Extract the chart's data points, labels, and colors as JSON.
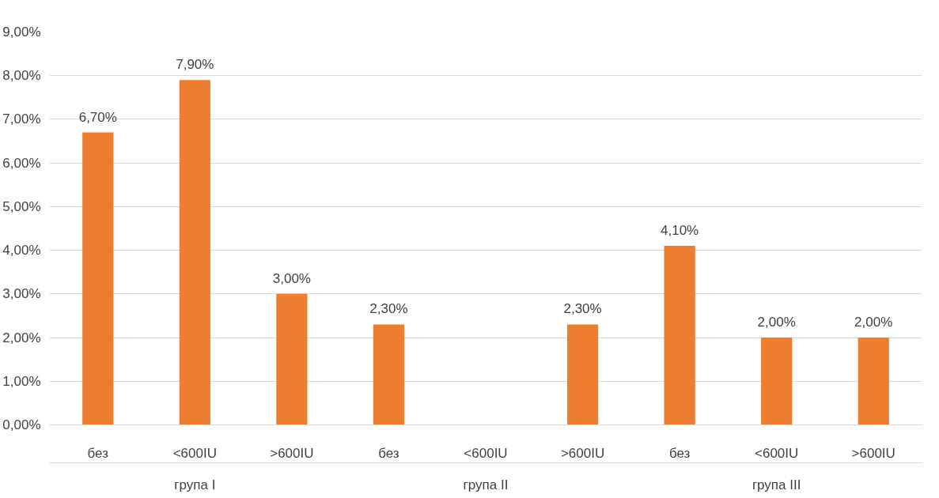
{
  "chart_data": {
    "type": "bar",
    "categories": [
      "без",
      "<600IU",
      ">600IU",
      "без",
      "<600IU",
      ">600IU",
      "без",
      "<600IU",
      ">600IU"
    ],
    "values": [
      6.7,
      7.9,
      3.0,
      2.3,
      null,
      2.3,
      4.1,
      2.0,
      2.0
    ],
    "value_labels": [
      "6,70%",
      "7,90%",
      "3,00%",
      "2,30%",
      null,
      "2,30%",
      "4,10%",
      "2,00%",
      "2,00%"
    ],
    "color": "#ed7d31",
    "annotations": [
      "група I",
      "група II",
      "група III"
    ],
    "ylim": [
      0,
      9
    ],
    "yticks": [
      {
        "value": 0,
        "label": "0,00%"
      },
      {
        "value": 1,
        "label": "1,00%"
      },
      {
        "value": 2,
        "label": "2,00%"
      },
      {
        "value": 3,
        "label": "3,00%"
      },
      {
        "value": 4,
        "label": "4,00%"
      },
      {
        "value": 5,
        "label": "5,00%"
      },
      {
        "value": 6,
        "label": "6,00%"
      },
      {
        "value": 7,
        "label": "7,00%"
      },
      {
        "value": 8,
        "label": "8,00%"
      },
      {
        "value": 9,
        "label": "9,00%"
      }
    ],
    "grid": "y"
  }
}
